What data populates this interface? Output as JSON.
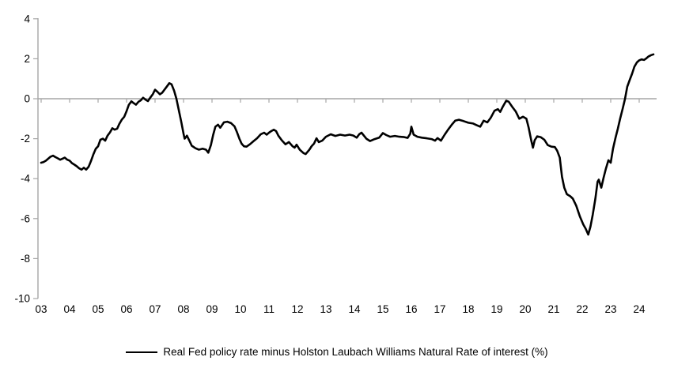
{
  "chart_data": {
    "type": "line",
    "title": "",
    "xlabel": "",
    "ylabel": "",
    "ylim": [
      -10,
      4
    ],
    "xlim": [
      2003,
      2024.6
    ],
    "grid": "zero-line-only",
    "legend_position": "bottom-center",
    "axis_color": "#a6a6a6",
    "label_color": "#000000",
    "y_ticks": [
      {
        "label": "4",
        "value": 4
      },
      {
        "label": "2",
        "value": 2
      },
      {
        "label": "0",
        "value": 0
      },
      {
        "label": "-2",
        "value": -2
      },
      {
        "label": "-4",
        "value": -4
      },
      {
        "label": "-6",
        "value": -6
      },
      {
        "label": "-8",
        "value": -8
      },
      {
        "label": "-10",
        "value": -10
      }
    ],
    "x_ticks": [
      {
        "label": "03",
        "year": 2003
      },
      {
        "label": "04",
        "year": 2004
      },
      {
        "label": "05",
        "year": 2005
      },
      {
        "label": "06",
        "year": 2006
      },
      {
        "label": "07",
        "year": 2007
      },
      {
        "label": "08",
        "year": 2008
      },
      {
        "label": "09",
        "year": 2009
      },
      {
        "label": "10",
        "year": 2010
      },
      {
        "label": "11",
        "year": 2011
      },
      {
        "label": "12",
        "year": 2012
      },
      {
        "label": "13",
        "year": 2013
      },
      {
        "label": "14",
        "year": 2014
      },
      {
        "label": "15",
        "year": 2015
      },
      {
        "label": "16",
        "year": 2016
      },
      {
        "label": "17",
        "year": 2017
      },
      {
        "label": "18",
        "year": 2018
      },
      {
        "label": "19",
        "year": 2019
      },
      {
        "label": "20",
        "year": 2020
      },
      {
        "label": "21",
        "year": 2021
      },
      {
        "label": "22",
        "year": 2022
      },
      {
        "label": "23",
        "year": 2023
      },
      {
        "label": "24",
        "year": 2024
      }
    ],
    "series": [
      {
        "name": "Real Fed policy rate minus Holston Laubach Williams Natural Rate of interest (%)",
        "color": "#000000",
        "points": [
          [
            2003.0,
            -3.2
          ],
          [
            2003.08,
            -3.17
          ],
          [
            2003.17,
            -3.1
          ],
          [
            2003.25,
            -3.0
          ],
          [
            2003.33,
            -2.9
          ],
          [
            2003.42,
            -2.85
          ],
          [
            2003.5,
            -2.92
          ],
          [
            2003.58,
            -2.98
          ],
          [
            2003.67,
            -3.05
          ],
          [
            2003.75,
            -3.0
          ],
          [
            2003.83,
            -2.95
          ],
          [
            2003.92,
            -3.05
          ],
          [
            2004.0,
            -3.1
          ],
          [
            2004.08,
            -3.22
          ],
          [
            2004.17,
            -3.3
          ],
          [
            2004.25,
            -3.38
          ],
          [
            2004.33,
            -3.48
          ],
          [
            2004.42,
            -3.55
          ],
          [
            2004.5,
            -3.45
          ],
          [
            2004.58,
            -3.55
          ],
          [
            2004.67,
            -3.4
          ],
          [
            2004.75,
            -3.12
          ],
          [
            2004.83,
            -2.8
          ],
          [
            2004.92,
            -2.5
          ],
          [
            2005.0,
            -2.38
          ],
          [
            2005.08,
            -2.05
          ],
          [
            2005.17,
            -2.0
          ],
          [
            2005.25,
            -2.1
          ],
          [
            2005.33,
            -1.85
          ],
          [
            2005.42,
            -1.68
          ],
          [
            2005.5,
            -1.48
          ],
          [
            2005.58,
            -1.55
          ],
          [
            2005.67,
            -1.5
          ],
          [
            2005.75,
            -1.25
          ],
          [
            2005.83,
            -1.05
          ],
          [
            2005.92,
            -0.9
          ],
          [
            2006.0,
            -0.62
          ],
          [
            2006.08,
            -0.3
          ],
          [
            2006.17,
            -0.13
          ],
          [
            2006.25,
            -0.22
          ],
          [
            2006.33,
            -0.3
          ],
          [
            2006.42,
            -0.15
          ],
          [
            2006.5,
            -0.08
          ],
          [
            2006.58,
            0.05
          ],
          [
            2006.67,
            -0.05
          ],
          [
            2006.75,
            -0.12
          ],
          [
            2006.83,
            0.05
          ],
          [
            2006.92,
            0.22
          ],
          [
            2007.0,
            0.45
          ],
          [
            2007.08,
            0.35
          ],
          [
            2007.17,
            0.22
          ],
          [
            2007.25,
            0.3
          ],
          [
            2007.33,
            0.45
          ],
          [
            2007.42,
            0.62
          ],
          [
            2007.5,
            0.78
          ],
          [
            2007.58,
            0.72
          ],
          [
            2007.67,
            0.4
          ],
          [
            2007.75,
            0.0
          ],
          [
            2007.83,
            -0.55
          ],
          [
            2007.92,
            -1.15
          ],
          [
            2008.0,
            -1.75
          ],
          [
            2008.04,
            -2.0
          ],
          [
            2008.12,
            -1.85
          ],
          [
            2008.21,
            -2.12
          ],
          [
            2008.29,
            -2.35
          ],
          [
            2008.42,
            -2.48
          ],
          [
            2008.54,
            -2.55
          ],
          [
            2008.67,
            -2.5
          ],
          [
            2008.79,
            -2.55
          ],
          [
            2008.87,
            -2.7
          ],
          [
            2008.96,
            -2.32
          ],
          [
            2009.04,
            -1.82
          ],
          [
            2009.12,
            -1.4
          ],
          [
            2009.21,
            -1.3
          ],
          [
            2009.29,
            -1.45
          ],
          [
            2009.42,
            -1.18
          ],
          [
            2009.54,
            -1.15
          ],
          [
            2009.67,
            -1.22
          ],
          [
            2009.79,
            -1.38
          ],
          [
            2009.87,
            -1.65
          ],
          [
            2009.96,
            -2.0
          ],
          [
            2010.04,
            -2.25
          ],
          [
            2010.12,
            -2.38
          ],
          [
            2010.21,
            -2.4
          ],
          [
            2010.33,
            -2.28
          ],
          [
            2010.46,
            -2.12
          ],
          [
            2010.58,
            -1.98
          ],
          [
            2010.71,
            -1.78
          ],
          [
            2010.83,
            -1.7
          ],
          [
            2010.92,
            -1.8
          ],
          [
            2011.0,
            -1.7
          ],
          [
            2011.08,
            -1.62
          ],
          [
            2011.17,
            -1.55
          ],
          [
            2011.25,
            -1.62
          ],
          [
            2011.33,
            -1.85
          ],
          [
            2011.45,
            -2.08
          ],
          [
            2011.58,
            -2.28
          ],
          [
            2011.7,
            -2.17
          ],
          [
            2011.83,
            -2.38
          ],
          [
            2011.9,
            -2.45
          ],
          [
            2011.97,
            -2.3
          ],
          [
            2012.08,
            -2.55
          ],
          [
            2012.21,
            -2.72
          ],
          [
            2012.29,
            -2.77
          ],
          [
            2012.42,
            -2.55
          ],
          [
            2012.5,
            -2.37
          ],
          [
            2012.58,
            -2.25
          ],
          [
            2012.67,
            -1.98
          ],
          [
            2012.75,
            -2.17
          ],
          [
            2012.87,
            -2.1
          ],
          [
            2013.0,
            -1.9
          ],
          [
            2013.17,
            -1.78
          ],
          [
            2013.33,
            -1.86
          ],
          [
            2013.5,
            -1.8
          ],
          [
            2013.67,
            -1.84
          ],
          [
            2013.83,
            -1.8
          ],
          [
            2013.96,
            -1.84
          ],
          [
            2014.08,
            -1.95
          ],
          [
            2014.17,
            -1.78
          ],
          [
            2014.25,
            -1.7
          ],
          [
            2014.42,
            -2.0
          ],
          [
            2014.55,
            -2.12
          ],
          [
            2014.71,
            -2.02
          ],
          [
            2014.87,
            -1.95
          ],
          [
            2015.0,
            -1.72
          ],
          [
            2015.12,
            -1.82
          ],
          [
            2015.25,
            -1.9
          ],
          [
            2015.42,
            -1.86
          ],
          [
            2015.58,
            -1.9
          ],
          [
            2015.75,
            -1.92
          ],
          [
            2015.87,
            -1.96
          ],
          [
            2015.96,
            -1.75
          ],
          [
            2016.0,
            -1.4
          ],
          [
            2016.08,
            -1.8
          ],
          [
            2016.21,
            -1.9
          ],
          [
            2016.37,
            -1.95
          ],
          [
            2016.54,
            -1.98
          ],
          [
            2016.71,
            -2.02
          ],
          [
            2016.83,
            -2.1
          ],
          [
            2016.92,
            -1.97
          ],
          [
            2017.04,
            -2.1
          ],
          [
            2017.17,
            -1.8
          ],
          [
            2017.29,
            -1.55
          ],
          [
            2017.42,
            -1.3
          ],
          [
            2017.54,
            -1.1
          ],
          [
            2017.67,
            -1.05
          ],
          [
            2017.83,
            -1.12
          ],
          [
            2018.0,
            -1.2
          ],
          [
            2018.17,
            -1.24
          ],
          [
            2018.29,
            -1.32
          ],
          [
            2018.42,
            -1.4
          ],
          [
            2018.54,
            -1.1
          ],
          [
            2018.67,
            -1.18
          ],
          [
            2018.79,
            -0.95
          ],
          [
            2018.92,
            -0.6
          ],
          [
            2019.04,
            -0.52
          ],
          [
            2019.12,
            -0.66
          ],
          [
            2019.21,
            -0.4
          ],
          [
            2019.33,
            -0.1
          ],
          [
            2019.42,
            -0.15
          ],
          [
            2019.54,
            -0.4
          ],
          [
            2019.67,
            -0.65
          ],
          [
            2019.79,
            -1.0
          ],
          [
            2019.92,
            -0.9
          ],
          [
            2020.04,
            -1.0
          ],
          [
            2020.12,
            -1.45
          ],
          [
            2020.21,
            -2.1
          ],
          [
            2020.27,
            -2.45
          ],
          [
            2020.33,
            -2.08
          ],
          [
            2020.42,
            -1.88
          ],
          [
            2020.54,
            -1.92
          ],
          [
            2020.67,
            -2.05
          ],
          [
            2020.79,
            -2.32
          ],
          [
            2020.92,
            -2.4
          ],
          [
            2021.04,
            -2.42
          ],
          [
            2021.12,
            -2.6
          ],
          [
            2021.21,
            -2.95
          ],
          [
            2021.29,
            -3.9
          ],
          [
            2021.37,
            -4.45
          ],
          [
            2021.46,
            -4.78
          ],
          [
            2021.58,
            -4.88
          ],
          [
            2021.67,
            -5.0
          ],
          [
            2021.79,
            -5.35
          ],
          [
            2021.92,
            -5.9
          ],
          [
            2022.04,
            -6.3
          ],
          [
            2022.12,
            -6.5
          ],
          [
            2022.21,
            -6.8
          ],
          [
            2022.29,
            -6.4
          ],
          [
            2022.37,
            -5.8
          ],
          [
            2022.46,
            -5.0
          ],
          [
            2022.54,
            -4.15
          ],
          [
            2022.58,
            -4.05
          ],
          [
            2022.67,
            -4.45
          ],
          [
            2022.75,
            -3.95
          ],
          [
            2022.83,
            -3.5
          ],
          [
            2022.92,
            -3.08
          ],
          [
            2023.0,
            -3.2
          ],
          [
            2023.08,
            -2.5
          ],
          [
            2023.17,
            -1.95
          ],
          [
            2023.25,
            -1.5
          ],
          [
            2023.33,
            -1.0
          ],
          [
            2023.42,
            -0.5
          ],
          [
            2023.5,
            -0.02
          ],
          [
            2023.58,
            0.6
          ],
          [
            2023.67,
            0.95
          ],
          [
            2023.75,
            1.25
          ],
          [
            2023.83,
            1.6
          ],
          [
            2023.92,
            1.82
          ],
          [
            2024.0,
            1.92
          ],
          [
            2024.08,
            1.97
          ],
          [
            2024.17,
            1.94
          ],
          [
            2024.25,
            2.02
          ],
          [
            2024.33,
            2.12
          ],
          [
            2024.42,
            2.18
          ],
          [
            2024.5,
            2.22
          ]
        ]
      }
    ]
  },
  "legend": {
    "label": "Real Fed policy rate minus Holston Laubach Williams Natural Rate of interest (%)"
  }
}
